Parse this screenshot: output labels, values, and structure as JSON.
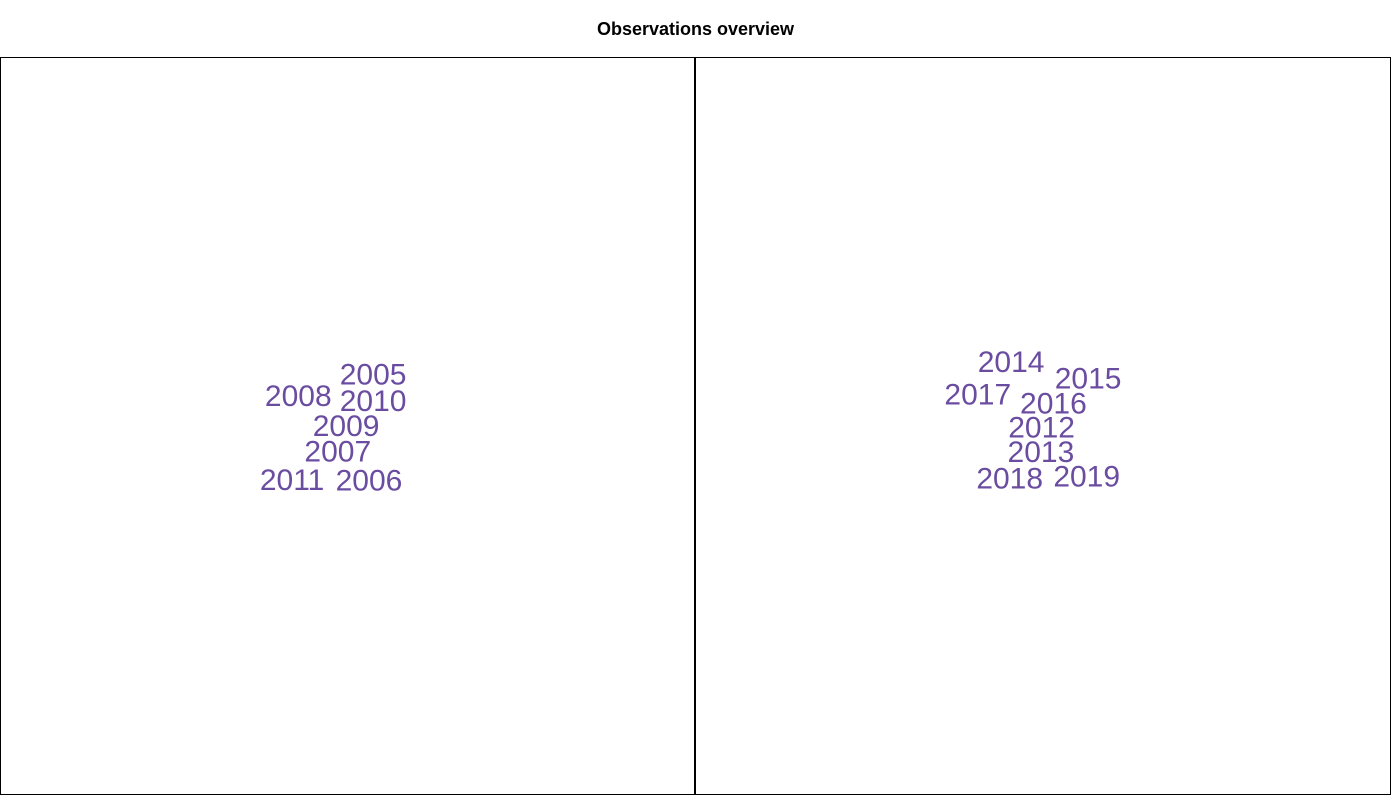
{
  "title": "Observations overview",
  "colors": {
    "label": "#6a4ca0",
    "frame": "#000000",
    "background": "#ffffff"
  },
  "chart_data": [
    {
      "type": "scatter",
      "mark": "text-labels",
      "xlim": [
        0,
        1
      ],
      "ylim": [
        0,
        1
      ],
      "grid": false,
      "labels": [
        {
          "text": "2005",
          "x": 0.537,
          "y": 0.569
        },
        {
          "text": "2008",
          "x": 0.429,
          "y": 0.54
        },
        {
          "text": "2010",
          "x": 0.537,
          "y": 0.533
        },
        {
          "text": "2009",
          "x": 0.498,
          "y": 0.499
        },
        {
          "text": "2007",
          "x": 0.486,
          "y": 0.465
        },
        {
          "text": "2011",
          "x": 0.42,
          "y": 0.426
        },
        {
          "text": "2006",
          "x": 0.531,
          "y": 0.425
        }
      ]
    },
    {
      "type": "scatter",
      "mark": "text-labels",
      "xlim": [
        0,
        1
      ],
      "ylim": [
        0,
        1
      ],
      "grid": false,
      "labels": [
        {
          "text": "2014",
          "x": 0.454,
          "y": 0.586
        },
        {
          "text": "2015",
          "x": 0.565,
          "y": 0.564
        },
        {
          "text": "2017",
          "x": 0.406,
          "y": 0.542
        },
        {
          "text": "2016",
          "x": 0.515,
          "y": 0.53
        },
        {
          "text": "2012",
          "x": 0.498,
          "y": 0.497
        },
        {
          "text": "2013",
          "x": 0.497,
          "y": 0.464
        },
        {
          "text": "2018",
          "x": 0.452,
          "y": 0.428
        },
        {
          "text": "2019",
          "x": 0.563,
          "y": 0.431
        }
      ]
    }
  ]
}
